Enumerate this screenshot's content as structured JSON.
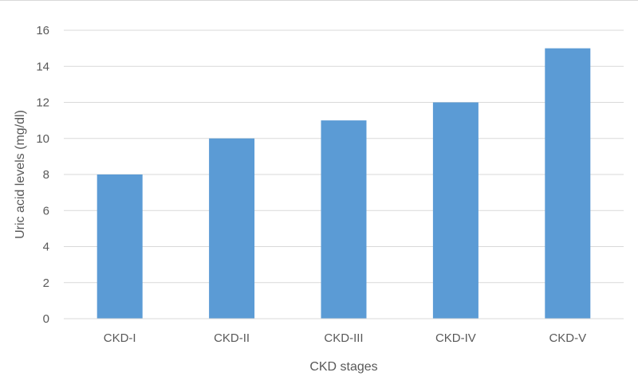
{
  "chart_data": {
    "type": "bar",
    "title": "",
    "xlabel": "CKD stages",
    "ylabel": "Uric acid levels (mg/dl)",
    "categories": [
      "CKD-I",
      "CKD-II",
      "CKD-III",
      "CKD-IV",
      "CKD-V"
    ],
    "values": [
      8,
      10,
      11,
      12,
      15
    ],
    "ylim": [
      0,
      16
    ],
    "yticks": [
      0,
      2,
      4,
      6,
      8,
      10,
      12,
      14,
      16
    ],
    "grid": true,
    "legend": "none",
    "colors": {
      "bar": "#5b9bd5",
      "grid": "#d9d9d9",
      "text": "#595959"
    }
  }
}
